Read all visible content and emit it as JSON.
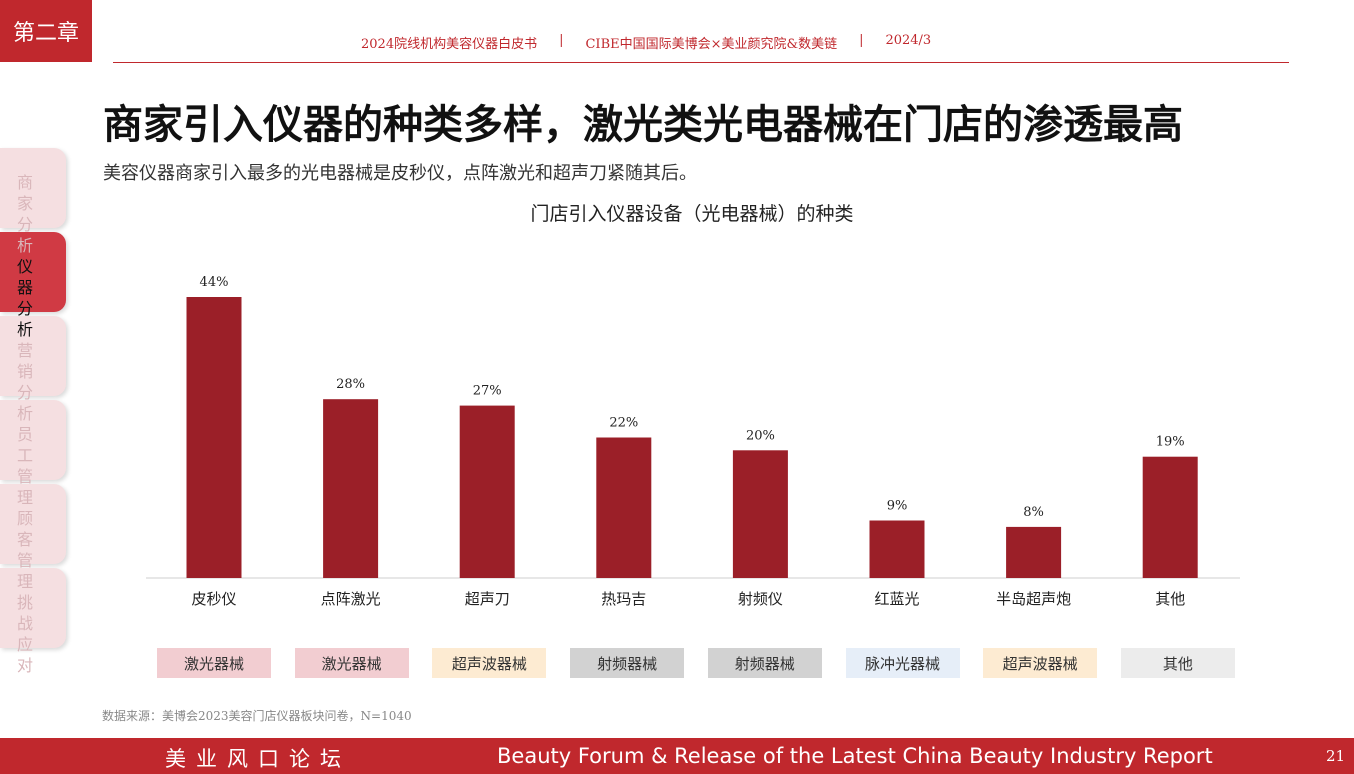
{
  "chapter": "第二章",
  "header": {
    "items": [
      "2024院线机构美容仪器白皮书",
      "CIBE中国国际美博会×美业颜究院&数美链",
      "2024/3"
    ],
    "separator": "|"
  },
  "title": "商家引入仪器的种类多样，激光类光电器械在门店的渗透最高",
  "subtitle": "美容仪器商家引入最多的光电器械是皮秒仪，点阵激光和超声刀紧随其后。",
  "sidebar": {
    "tabs": [
      {
        "label": "商家分析",
        "active": false
      },
      {
        "label": "仪器分析",
        "active": true
      },
      {
        "label": "营销分析",
        "active": false
      },
      {
        "label": "员工管理",
        "active": false
      },
      {
        "label": "顾客管理",
        "active": false
      },
      {
        "label": "挑战应对",
        "active": false
      }
    ],
    "colors": {
      "active": "#d03a44",
      "inactive": "#f5dfe1"
    }
  },
  "chart_data": {
    "type": "bar",
    "title": "门店引入仪器设备（光电器械）的种类",
    "categories": [
      "皮秒仪",
      "点阵激光",
      "超声刀",
      "热玛吉",
      "射频仪",
      "红蓝光",
      "半岛超声炮",
      "其他"
    ],
    "values": [
      44,
      28,
      27,
      22,
      20,
      9,
      8,
      19
    ],
    "value_labels": [
      "44%",
      "28%",
      "27%",
      "22%",
      "20%",
      "9%",
      "8%",
      "19%"
    ],
    "unit": "%",
    "ylim": [
      0,
      50
    ],
    "grid": false,
    "legend": "none",
    "bar_color": "#9b1f28",
    "xlabel": "",
    "ylabel": ""
  },
  "device_types": [
    {
      "label": "激光器械",
      "color": "#f2cdd1"
    },
    {
      "label": "激光器械",
      "color": "#f2cdd1"
    },
    {
      "label": "超声波器械",
      "color": "#fdebd2"
    },
    {
      "label": "射频器械",
      "color": "#d2d2d2"
    },
    {
      "label": "射频器械",
      "color": "#d2d2d2"
    },
    {
      "label": "脉冲光器械",
      "color": "#e6eef8"
    },
    {
      "label": "超声波器械",
      "color": "#fdebd2"
    },
    {
      "label": "其他",
      "color": "#ececec"
    }
  ],
  "source": "数据来源：美博会2023美容门店仪器板块问卷，N=1040",
  "footer": {
    "cn": "美业风口论坛",
    "en": "Beauty Forum & Release of the Latest China Beauty Industry Report",
    "page": "21"
  }
}
